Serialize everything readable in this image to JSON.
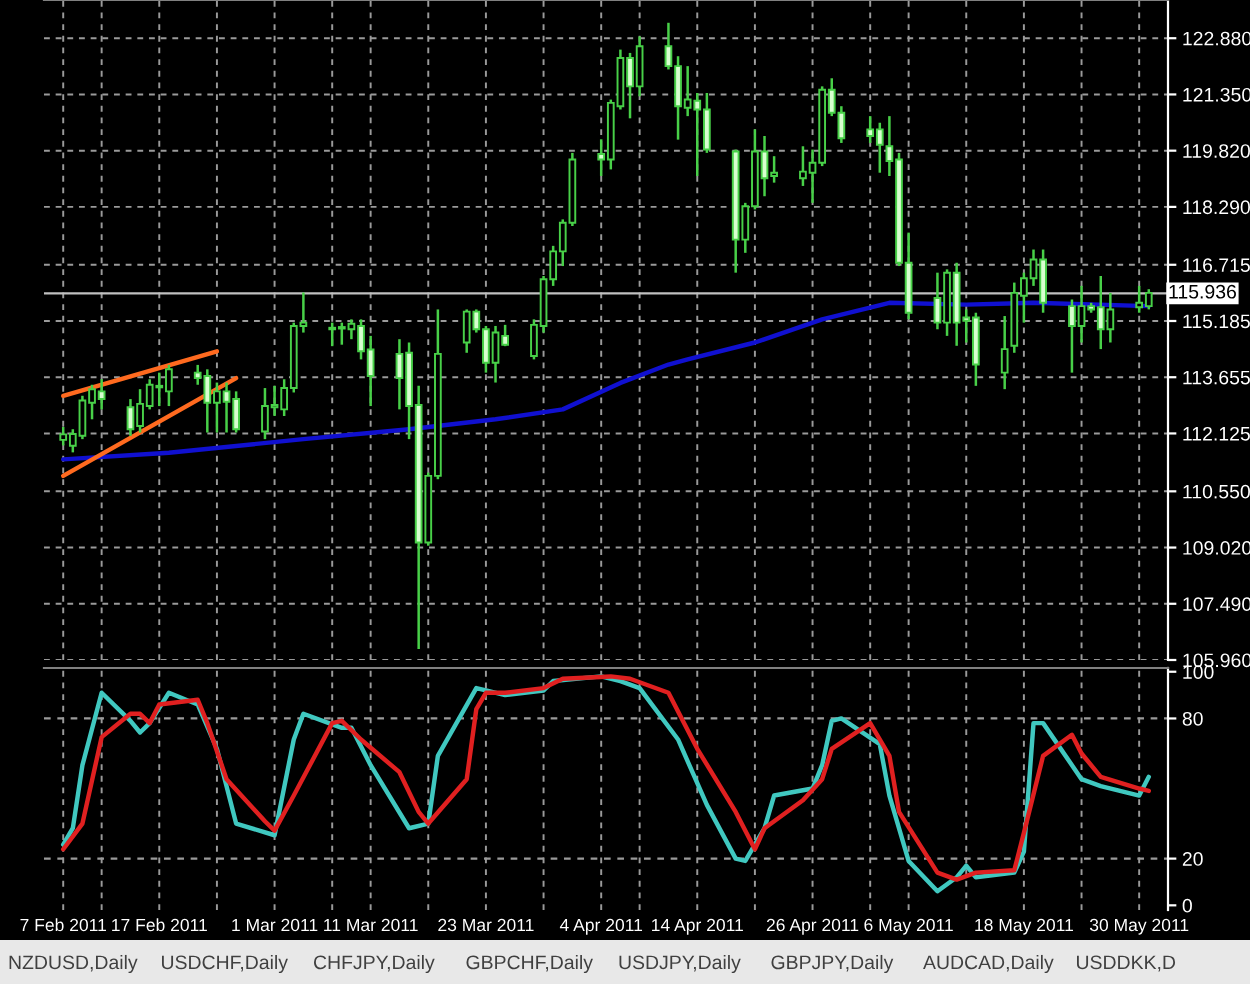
{
  "chart_data": [
    {
      "type": "candlestick",
      "x": [
        "2011-02-07",
        "2011-02-08",
        "2011-02-09",
        "2011-02-10",
        "2011-02-11",
        "2011-02-14",
        "2011-02-15",
        "2011-02-16",
        "2011-02-17",
        "2011-02-18",
        "2011-02-21",
        "2011-02-22",
        "2011-02-23",
        "2011-02-24",
        "2011-02-25",
        "2011-02-28",
        "2011-03-01",
        "2011-03-02",
        "2011-03-03",
        "2011-03-04",
        "2011-03-07",
        "2011-03-08",
        "2011-03-09",
        "2011-03-10",
        "2011-03-11",
        "2011-03-14",
        "2011-03-15",
        "2011-03-16",
        "2011-03-17",
        "2011-03-18",
        "2011-03-21",
        "2011-03-22",
        "2011-03-23",
        "2011-03-24",
        "2011-03-25",
        "2011-03-28",
        "2011-03-29",
        "2011-03-30",
        "2011-03-31",
        "2011-04-01",
        "2011-04-04",
        "2011-04-05",
        "2011-04-06",
        "2011-04-07",
        "2011-04-08",
        "2011-04-11",
        "2011-04-12",
        "2011-04-13",
        "2011-04-14",
        "2011-04-15",
        "2011-04-18",
        "2011-04-19",
        "2011-04-20",
        "2011-04-21",
        "2011-04-22",
        "2011-04-25",
        "2011-04-26",
        "2011-04-27",
        "2011-04-28",
        "2011-04-29",
        "2011-05-02",
        "2011-05-03",
        "2011-05-04",
        "2011-05-05",
        "2011-05-06",
        "2011-05-09",
        "2011-05-10",
        "2011-05-11",
        "2011-05-12",
        "2011-05-13",
        "2011-05-16",
        "2011-05-17",
        "2011-05-18",
        "2011-05-19",
        "2011-05-20",
        "2011-05-23",
        "2011-05-24",
        "2011-05-25",
        "2011-05-26",
        "2011-05-27",
        "2011-05-30",
        "2011-05-31"
      ],
      "ohlc": [
        [
          111.95,
          112.3,
          111.8,
          112.1
        ],
        [
          111.79,
          112.24,
          111.61,
          112.11
        ],
        [
          112.06,
          113.15,
          111.97,
          113.02
        ],
        [
          112.96,
          113.45,
          112.51,
          113.33
        ],
        [
          113.27,
          113.6,
          112.78,
          113.06
        ],
        [
          112.84,
          113.06,
          112.06,
          112.24
        ],
        [
          112.33,
          113.33,
          112.15,
          112.93
        ],
        [
          112.87,
          113.6,
          112.78,
          113.45
        ],
        [
          113.38,
          113.78,
          112.87,
          113.42
        ],
        [
          113.27,
          113.99,
          112.87,
          113.87
        ],
        [
          113.78,
          113.99,
          113.45,
          113.63
        ],
        [
          113.69,
          113.87,
          112.15,
          112.96
        ],
        [
          112.96,
          113.51,
          112.15,
          113.27
        ],
        [
          113.27,
          113.51,
          112.15,
          112.99
        ],
        [
          113.06,
          113.27,
          112.15,
          112.24
        ],
        [
          112.18,
          113.36,
          111.97,
          112.87
        ],
        [
          112.84,
          113.42,
          112.6,
          112.9
        ],
        [
          112.78,
          113.6,
          112.6,
          113.36
        ],
        [
          113.36,
          115.14,
          113.24,
          115.05
        ],
        [
          115.05,
          115.96,
          114.87,
          115.14
        ],
        [
          115.0,
          115.14,
          114.5,
          114.96
        ],
        [
          114.98,
          115.14,
          114.54,
          115.02
        ],
        [
          114.96,
          115.23,
          114.69,
          115.11
        ],
        [
          115.05,
          115.23,
          114.14,
          114.36
        ],
        [
          114.41,
          114.78,
          112.87,
          113.69
        ],
        [
          114.29,
          114.69,
          112.78,
          113.63
        ],
        [
          114.32,
          114.6,
          111.97,
          112.87
        ],
        [
          112.9,
          113.42,
          106.26,
          109.16
        ],
        [
          109.16,
          111.06,
          109.07,
          110.97
        ],
        [
          110.97,
          115.5,
          110.88,
          114.29
        ],
        [
          114.6,
          115.5,
          114.32,
          115.44
        ],
        [
          115.44,
          115.5,
          114.87,
          114.96
        ],
        [
          114.96,
          115.05,
          113.78,
          114.05
        ],
        [
          114.05,
          115.05,
          113.51,
          114.87
        ],
        [
          114.78,
          115.08,
          114.5,
          114.54
        ],
        [
          114.23,
          115.23,
          114.14,
          115.08
        ],
        [
          115.05,
          116.41,
          114.87,
          116.32
        ],
        [
          116.32,
          117.23,
          116.14,
          117.08
        ],
        [
          117.08,
          117.95,
          116.68,
          117.86
        ],
        [
          117.86,
          119.76,
          117.77,
          119.58
        ],
        [
          119.73,
          120.13,
          119.13,
          119.58
        ],
        [
          119.58,
          121.21,
          119.31,
          121.12
        ],
        [
          121.03,
          122.57,
          120.94,
          122.34
        ],
        [
          122.34,
          122.48,
          120.7,
          121.57
        ],
        [
          121.57,
          122.93,
          121.3,
          122.66
        ],
        [
          122.66,
          123.3,
          122.03,
          122.12
        ],
        [
          122.12,
          122.39,
          120.12,
          121.03
        ],
        [
          120.99,
          122.12,
          120.76,
          121.21
        ],
        [
          121.18,
          121.39,
          119.13,
          120.94
        ],
        [
          120.94,
          121.39,
          119.76,
          119.85
        ],
        [
          119.8,
          119.85,
          116.5,
          117.4
        ],
        [
          117.4,
          118.4,
          117.04,
          118.31
        ],
        [
          118.31,
          120.4,
          118.22,
          119.8
        ],
        [
          119.8,
          120.22,
          118.58,
          119.07
        ],
        [
          119.13,
          119.67,
          118.95,
          119.22
        ],
        [
          119.07,
          119.94,
          118.86,
          119.25
        ],
        [
          119.22,
          119.85,
          118.4,
          119.49
        ],
        [
          119.49,
          121.57,
          119.4,
          121.48
        ],
        [
          121.48,
          121.79,
          120.76,
          120.85
        ],
        [
          120.85,
          121.03,
          120.03,
          120.16
        ],
        [
          120.4,
          120.76,
          120.03,
          120.22
        ],
        [
          120.4,
          120.58,
          119.22,
          119.98
        ],
        [
          119.94,
          120.76,
          119.13,
          119.54
        ],
        [
          119.58,
          119.76,
          116.68,
          116.77
        ],
        [
          116.77,
          117.59,
          115.23,
          115.41
        ],
        [
          115.81,
          116.5,
          114.96,
          115.14
        ],
        [
          115.14,
          116.59,
          114.78,
          116.5
        ],
        [
          116.5,
          116.77,
          114.51,
          115.14
        ],
        [
          115.28,
          115.5,
          114.6,
          115.19
        ],
        [
          115.28,
          115.41,
          113.42,
          114.0
        ],
        [
          113.78,
          115.32,
          113.33,
          114.42
        ],
        [
          114.51,
          116.23,
          114.32,
          115.95
        ],
        [
          115.87,
          116.5,
          115.14,
          116.35
        ],
        [
          116.35,
          117.13,
          116.14,
          116.86
        ],
        [
          116.86,
          117.13,
          115.41,
          115.68
        ],
        [
          115.59,
          115.77,
          113.78,
          115.05
        ],
        [
          115.05,
          116.14,
          114.6,
          115.59
        ],
        [
          115.59,
          115.68,
          115.41,
          115.5
        ],
        [
          115.56,
          116.41,
          114.42,
          114.96
        ],
        [
          114.96,
          115.95,
          114.6,
          115.5
        ],
        [
          115.56,
          116.14,
          115.41,
          115.68
        ],
        [
          115.59,
          116.05,
          115.5,
          115.95
        ]
      ],
      "series": [
        {
          "type": "line",
          "color": "#1010d0",
          "x": [
            "2011-02-07",
            "2011-02-18",
            "2011-03-04",
            "2011-03-15",
            "2011-03-24",
            "2011-03-31",
            "2011-04-06",
            "2011-04-11",
            "2011-04-13",
            "2011-04-20",
            "2011-04-27",
            "2011-05-04",
            "2011-05-12",
            "2011-05-19",
            "2011-05-31"
          ],
          "values": [
            111.42,
            111.6,
            111.97,
            112.24,
            112.51,
            112.78,
            113.5,
            114.0,
            114.14,
            114.6,
            115.23,
            115.68,
            115.63,
            115.68,
            115.59
          ]
        },
        {
          "type": "line",
          "color": "#ff6a1f",
          "x": [
            "2011-02-07",
            "2011-02-23"
          ],
          "values": [
            113.15,
            114.36
          ]
        },
        {
          "type": "line",
          "color": "#ff6a1f",
          "x": [
            "2011-02-07",
            "2011-02-25"
          ],
          "values": [
            110.97,
            113.63
          ]
        }
      ],
      "xlim": [
        "2011-02-05",
        "2011-06-02"
      ],
      "xticks": [
        {
          "value": "2011-02-07",
          "label": null
        },
        {
          "value": "2011-02-11",
          "label": null
        },
        {
          "value": "2011-02-17",
          "label": null
        },
        {
          "value": "2011-02-23",
          "label": null
        },
        {
          "value": "2011-03-01",
          "label": null
        },
        {
          "value": "2011-03-07",
          "label": null
        },
        {
          "value": "2011-03-11",
          "label": null
        },
        {
          "value": "2011-03-17",
          "label": null
        },
        {
          "value": "2011-03-23",
          "label": null
        },
        {
          "value": "2011-03-29",
          "label": null
        },
        {
          "value": "2011-04-04",
          "label": null
        },
        {
          "value": "2011-04-08",
          "label": null
        },
        {
          "value": "2011-04-14",
          "label": null
        },
        {
          "value": "2011-04-20",
          "label": null
        },
        {
          "value": "2011-04-26",
          "label": null
        },
        {
          "value": "2011-05-02",
          "label": null
        },
        {
          "value": "2011-05-06",
          "label": null
        },
        {
          "value": "2011-05-12",
          "label": null
        },
        {
          "value": "2011-05-18",
          "label": null
        },
        {
          "value": "2011-05-24",
          "label": null
        },
        {
          "value": "2011-05-30",
          "label": null
        }
      ],
      "ylim": [
        105.96,
        123.92
      ],
      "yticks": [
        {
          "value": 105.96,
          "label": "105.960"
        },
        {
          "value": 107.49,
          "label": "107.490"
        },
        {
          "value": 109.02,
          "label": "109.020"
        },
        {
          "value": 110.55,
          "label": "110.550"
        },
        {
          "value": 112.125,
          "label": "112.125"
        },
        {
          "value": 113.655,
          "label": "113.655"
        },
        {
          "value": 115.185,
          "label": "115.185"
        },
        {
          "value": 116.715,
          "label": "116.715"
        },
        {
          "value": 118.29,
          "label": "118.290"
        },
        {
          "value": 119.82,
          "label": "119.820"
        },
        {
          "value": 121.35,
          "label": "121.350"
        },
        {
          "value": 122.88,
          "label": "122.880"
        }
      ],
      "ref_lines": [
        {
          "axis": "y",
          "value": 115.936,
          "label": "115.936",
          "color": "#c0c0c0"
        }
      ],
      "grid": true,
      "tick_labels": "y"
    },
    {
      "type": "line",
      "series": [
        {
          "color": "#40c8c0",
          "x": [
            "2011-02-07",
            "2011-02-08",
            "2011-02-09",
            "2011-02-11",
            "2011-02-14",
            "2011-02-15",
            "2011-02-16",
            "2011-02-18",
            "2011-02-21",
            "2011-02-23",
            "2011-02-25",
            "2011-03-01",
            "2011-03-03",
            "2011-03-04",
            "2011-03-08",
            "2011-03-09",
            "2011-03-11",
            "2011-03-15",
            "2011-03-17",
            "2011-03-18",
            "2011-03-22",
            "2011-03-23",
            "2011-03-25",
            "2011-03-29",
            "2011-03-30",
            "2011-04-04",
            "2011-04-06",
            "2011-04-08",
            "2011-04-12",
            "2011-04-15",
            "2011-04-18",
            "2011-04-19",
            "2011-04-21",
            "2011-04-22",
            "2011-04-26",
            "2011-04-27",
            "2011-04-28",
            "2011-04-29",
            "2011-05-03",
            "2011-05-04",
            "2011-05-06",
            "2011-05-09",
            "2011-05-11",
            "2011-05-12",
            "2011-05-13",
            "2011-05-17",
            "2011-05-18",
            "2011-05-19",
            "2011-05-20",
            "2011-05-24",
            "2011-05-26",
            "2011-05-30",
            "2011-05-31"
          ],
          "values": [
            26,
            33,
            60,
            91,
            79,
            74,
            78,
            91,
            86,
            67,
            35,
            30,
            71,
            82,
            76,
            76,
            60,
            33,
            35,
            64,
            93,
            92,
            90,
            92,
            96,
            98,
            96,
            93,
            71,
            43,
            20,
            19,
            33,
            47,
            50,
            60,
            79,
            80,
            69,
            47,
            19,
            6,
            12,
            17,
            12,
            14,
            23,
            78,
            78,
            54,
            51,
            47,
            55
          ]
        },
        {
          "color": "#e02020",
          "x": [
            "2011-02-07",
            "2011-02-09",
            "2011-02-11",
            "2011-02-14",
            "2011-02-15",
            "2011-02-16",
            "2011-02-17",
            "2011-02-21",
            "2011-02-22",
            "2011-02-24",
            "2011-02-28",
            "2011-03-01",
            "2011-03-03",
            "2011-03-07",
            "2011-03-08",
            "2011-03-10",
            "2011-03-14",
            "2011-03-16",
            "2011-03-17",
            "2011-03-21",
            "2011-03-22",
            "2011-03-23",
            "2011-03-25",
            "2011-03-29",
            "2011-03-31",
            "2011-04-05",
            "2011-04-07",
            "2011-04-11",
            "2011-04-14",
            "2011-04-18",
            "2011-04-20",
            "2011-04-21",
            "2011-04-25",
            "2011-04-27",
            "2011-04-28",
            "2011-05-02",
            "2011-05-04",
            "2011-05-05",
            "2011-05-09",
            "2011-05-11",
            "2011-05-13",
            "2011-05-17",
            "2011-05-18",
            "2011-05-20",
            "2011-05-23",
            "2011-05-24",
            "2011-05-26",
            "2011-05-30",
            "2011-05-31"
          ],
          "values": [
            24,
            35,
            72,
            82,
            82,
            78,
            86,
            88,
            78,
            54,
            36,
            32,
            47,
            78,
            79,
            71,
            57,
            40,
            35,
            54,
            84,
            91,
            91,
            93,
            97,
            98,
            97,
            91,
            67,
            40,
            24,
            33,
            45,
            54,
            67,
            78,
            64,
            40,
            14,
            11,
            14,
            15,
            31,
            64,
            73,
            65,
            55,
            50,
            49
          ]
        }
      ],
      "xlim": [
        "2011-02-05",
        "2011-06-02"
      ],
      "xticks": [
        {
          "value": "2011-02-07",
          "label": "7 Feb 2011"
        },
        {
          "value": "2011-02-11",
          "label": null
        },
        {
          "value": "2011-02-17",
          "label": "17 Feb 2011"
        },
        {
          "value": "2011-02-23",
          "label": null
        },
        {
          "value": "2011-03-01",
          "label": "1 Mar 2011"
        },
        {
          "value": "2011-03-07",
          "label": null
        },
        {
          "value": "2011-03-11",
          "label": "11 Mar 2011"
        },
        {
          "value": "2011-03-17",
          "label": null
        },
        {
          "value": "2011-03-23",
          "label": "23 Mar 2011"
        },
        {
          "value": "2011-03-29",
          "label": null
        },
        {
          "value": "2011-04-04",
          "label": "4 Apr 2011"
        },
        {
          "value": "2011-04-08",
          "label": null
        },
        {
          "value": "2011-04-14",
          "label": "14 Apr 2011"
        },
        {
          "value": "2011-04-20",
          "label": null
        },
        {
          "value": "2011-04-26",
          "label": "26 Apr 2011"
        },
        {
          "value": "2011-05-02",
          "label": null
        },
        {
          "value": "2011-05-06",
          "label": "6 May 2011"
        },
        {
          "value": "2011-05-12",
          "label": null
        },
        {
          "value": "2011-05-18",
          "label": "18 May 2011"
        },
        {
          "value": "2011-05-24",
          "label": null
        },
        {
          "value": "2011-05-30",
          "label": "30 May 2011"
        }
      ],
      "ylim": [
        -2,
        101.6
      ],
      "yticks": [
        0,
        20,
        80,
        100
      ],
      "ref_lines": [
        {
          "axis": "y",
          "value": 20,
          "line_style": "dashed"
        },
        {
          "axis": "y",
          "value": 80,
          "line_style": "dashed"
        }
      ],
      "grid": "x",
      "annotations": [
        "NZDUSD,Daily",
        "USDCHF,Daily",
        "CHFJPY,Daily",
        "GBPCHF,Daily",
        "USDJPY,Daily",
        "GBPJPY,Daily",
        "AUDCAD,Daily",
        "USDDKK,D"
      ]
    }
  ]
}
